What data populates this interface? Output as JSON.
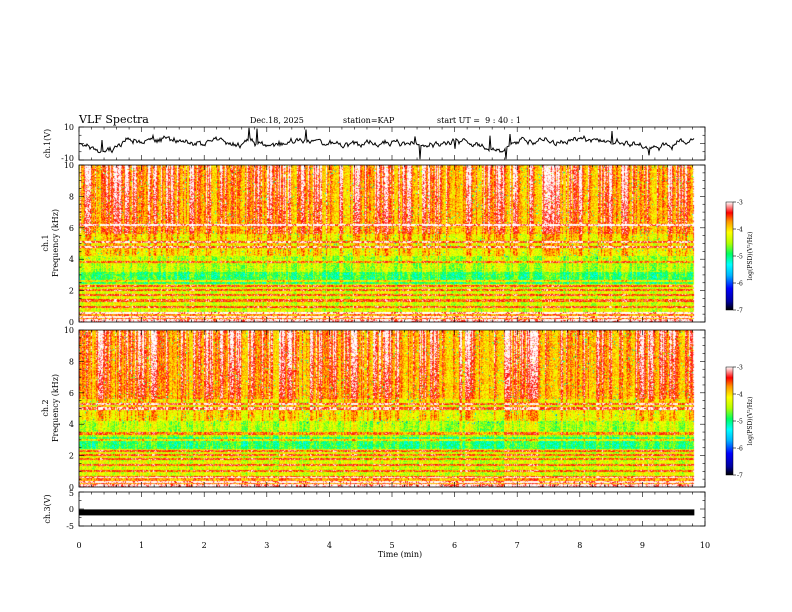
{
  "header": {
    "title": "VLF Spectra",
    "date": "Dec.18, 2025",
    "station": "station=KAP",
    "start": "start UT =  9 : 40 : 1"
  },
  "chart_data": {
    "type": "heatmap",
    "title": "VLF Spectra",
    "xlabel": "Time (min)",
    "xlim": [
      0,
      10
    ],
    "x_ticks": [
      "0",
      "1",
      "2",
      "3",
      "4",
      "5",
      "6",
      "7",
      "8",
      "9",
      "10"
    ],
    "data_extent_min": 9.83,
    "panels": [
      {
        "name": "ch1-waveform",
        "type": "line",
        "ylabel": "ch.1(V)",
        "ylim": [
          -10,
          10
        ],
        "y_ticks": [
          "10",
          "-10"
        ],
        "baseline": 0
      },
      {
        "name": "ch1-spectrogram",
        "type": "heatmap",
        "ylabel_top": "ch.1",
        "ylabel": "Frequency (kHz)",
        "ylim": [
          0,
          10
        ],
        "y_ticks": [
          "0",
          "2",
          "4",
          "6",
          "8",
          "10"
        ],
        "colorbar": {
          "label": "log(PSD)(V²/Hz)",
          "range": [
            -7,
            -3
          ],
          "ticks": [
            "-3",
            "-4",
            "-5",
            "-6",
            "-7"
          ]
        }
      },
      {
        "name": "ch2-spectrogram",
        "type": "heatmap",
        "ylabel_top": "ch.2",
        "ylabel": "Frequency (kHz)",
        "ylim": [
          0,
          10
        ],
        "y_ticks": [
          "0",
          "2",
          "4",
          "6",
          "8",
          "10"
        ],
        "colorbar": {
          "label": "log(PSD)(V²/Hz)",
          "range": [
            -7,
            -3
          ],
          "ticks": [
            "-3",
            "-4",
            "-5",
            "-6",
            "-7"
          ]
        }
      },
      {
        "name": "ch3-waveform",
        "type": "line",
        "ylabel": "ch.3(V)",
        "ylim": [
          -5,
          5
        ],
        "y_ticks": [
          "5",
          "0",
          "-5"
        ],
        "baseline": -1
      }
    ]
  }
}
